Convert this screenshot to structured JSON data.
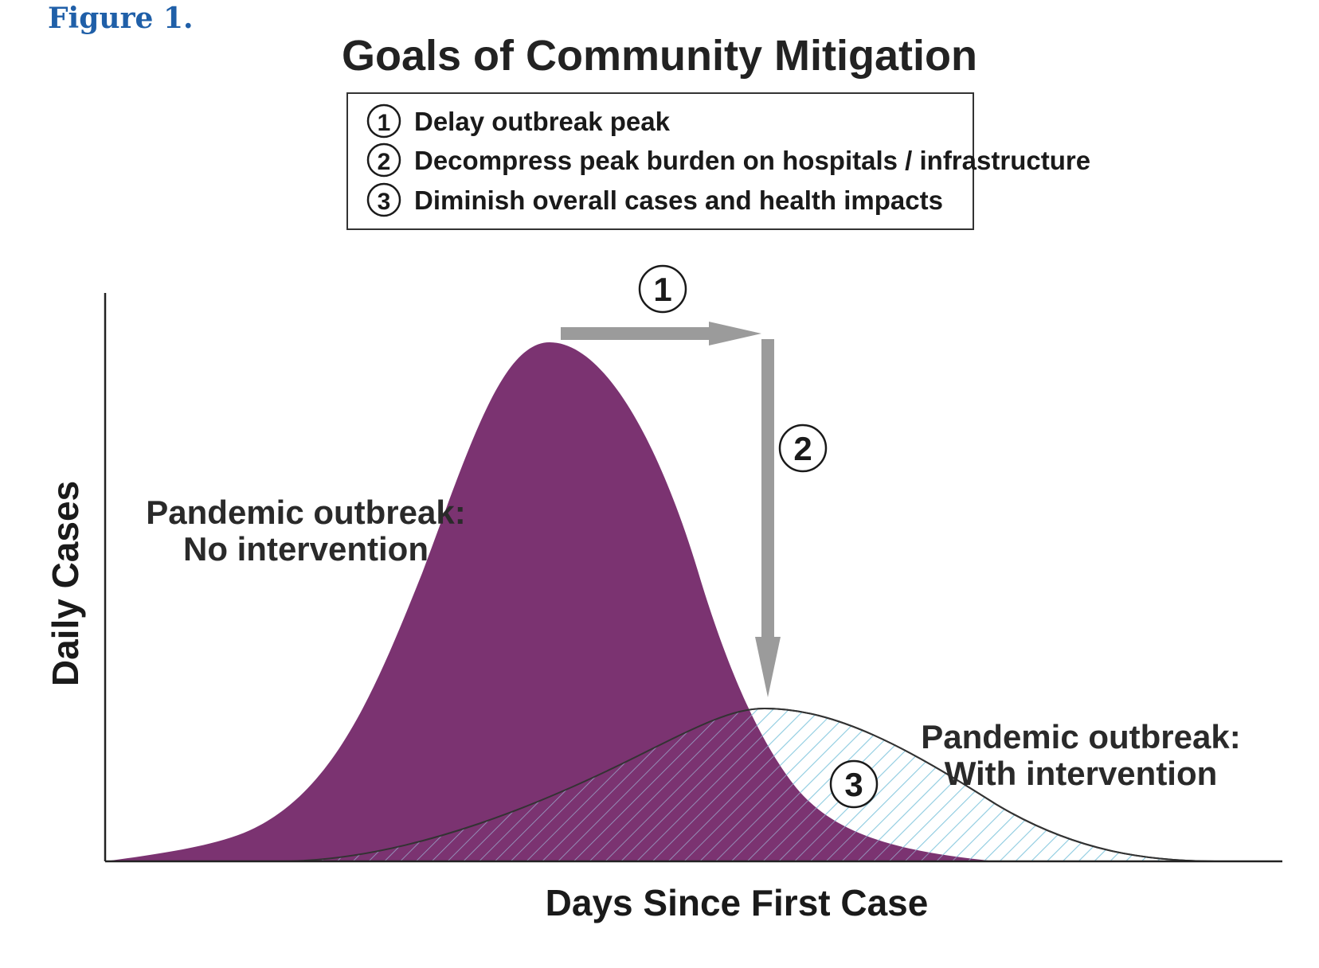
{
  "figure_label": "Figure 1.",
  "title": "Goals of Community Mitigation",
  "legend": {
    "items": [
      {
        "num": "1",
        "text": "Delay outbreak peak"
      },
      {
        "num": "2",
        "text": "Decompress peak burden on hospitals / infrastructure"
      },
      {
        "num": "3",
        "text": "Diminish overall cases and health impacts"
      }
    ]
  },
  "markers": {
    "delay": "1",
    "decompress": "2",
    "diminish": "3"
  },
  "labels": {
    "no_intervention_line1": "Pandemic outbreak:",
    "no_intervention_line2": "No intervention",
    "with_intervention_line1": "Pandemic outbreak:",
    "with_intervention_line2": "With intervention"
  },
  "axes": {
    "x_label": "Days Since First Case",
    "y_label": "Daily Cases"
  },
  "colors": {
    "no_intervention_fill": "#7b3371",
    "with_intervention_hatch": "#8ccbe0",
    "arrow": "#9b9b9b",
    "outline": "#333333"
  }
}
